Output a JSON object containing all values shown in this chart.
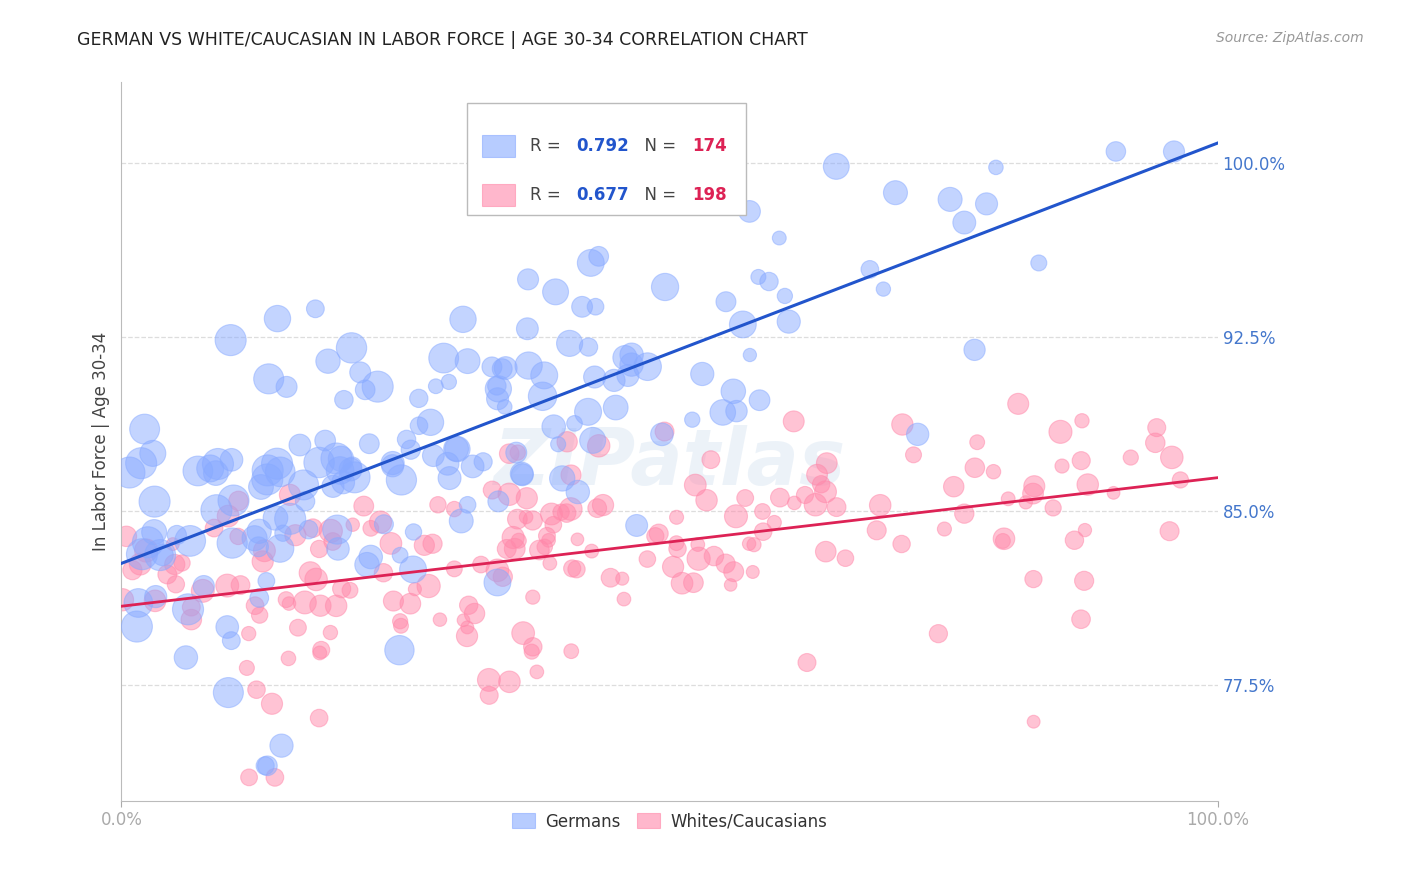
{
  "title": "GERMAN VS WHITE/CAUCASIAN IN LABOR FORCE | AGE 30-34 CORRELATION CHART",
  "source": "Source: ZipAtlas.com",
  "ylabel": "In Labor Force | Age 30-34",
  "watermark": "ZIPatlas",
  "blue_R": 0.792,
  "blue_N": 174,
  "pink_R": 0.677,
  "pink_N": 198,
  "blue_label": "Germans",
  "pink_label": "Whites/Caucasians",
  "blue_color": "#88aaff",
  "pink_color": "#ff88aa",
  "blue_line_color": "#2255cc",
  "pink_line_color": "#dd2255",
  "xlim": [
    0.0,
    1.0
  ],
  "ylim": [
    0.725,
    1.035
  ],
  "yticks": [
    0.775,
    0.85,
    0.925,
    1.0
  ],
  "ytick_labels": [
    "77.5%",
    "85.0%",
    "92.5%",
    "100.0%"
  ],
  "xticks": [
    0.0,
    1.0
  ],
  "xtick_labels": [
    "0.0%",
    "100.0%"
  ],
  "background_color": "#ffffff",
  "grid_color": "#dddddd",
  "title_color": "#222222",
  "axis_label_color": "#444444",
  "tick_label_color": "#4477cc",
  "blue_seed": 42,
  "pink_seed": 77
}
